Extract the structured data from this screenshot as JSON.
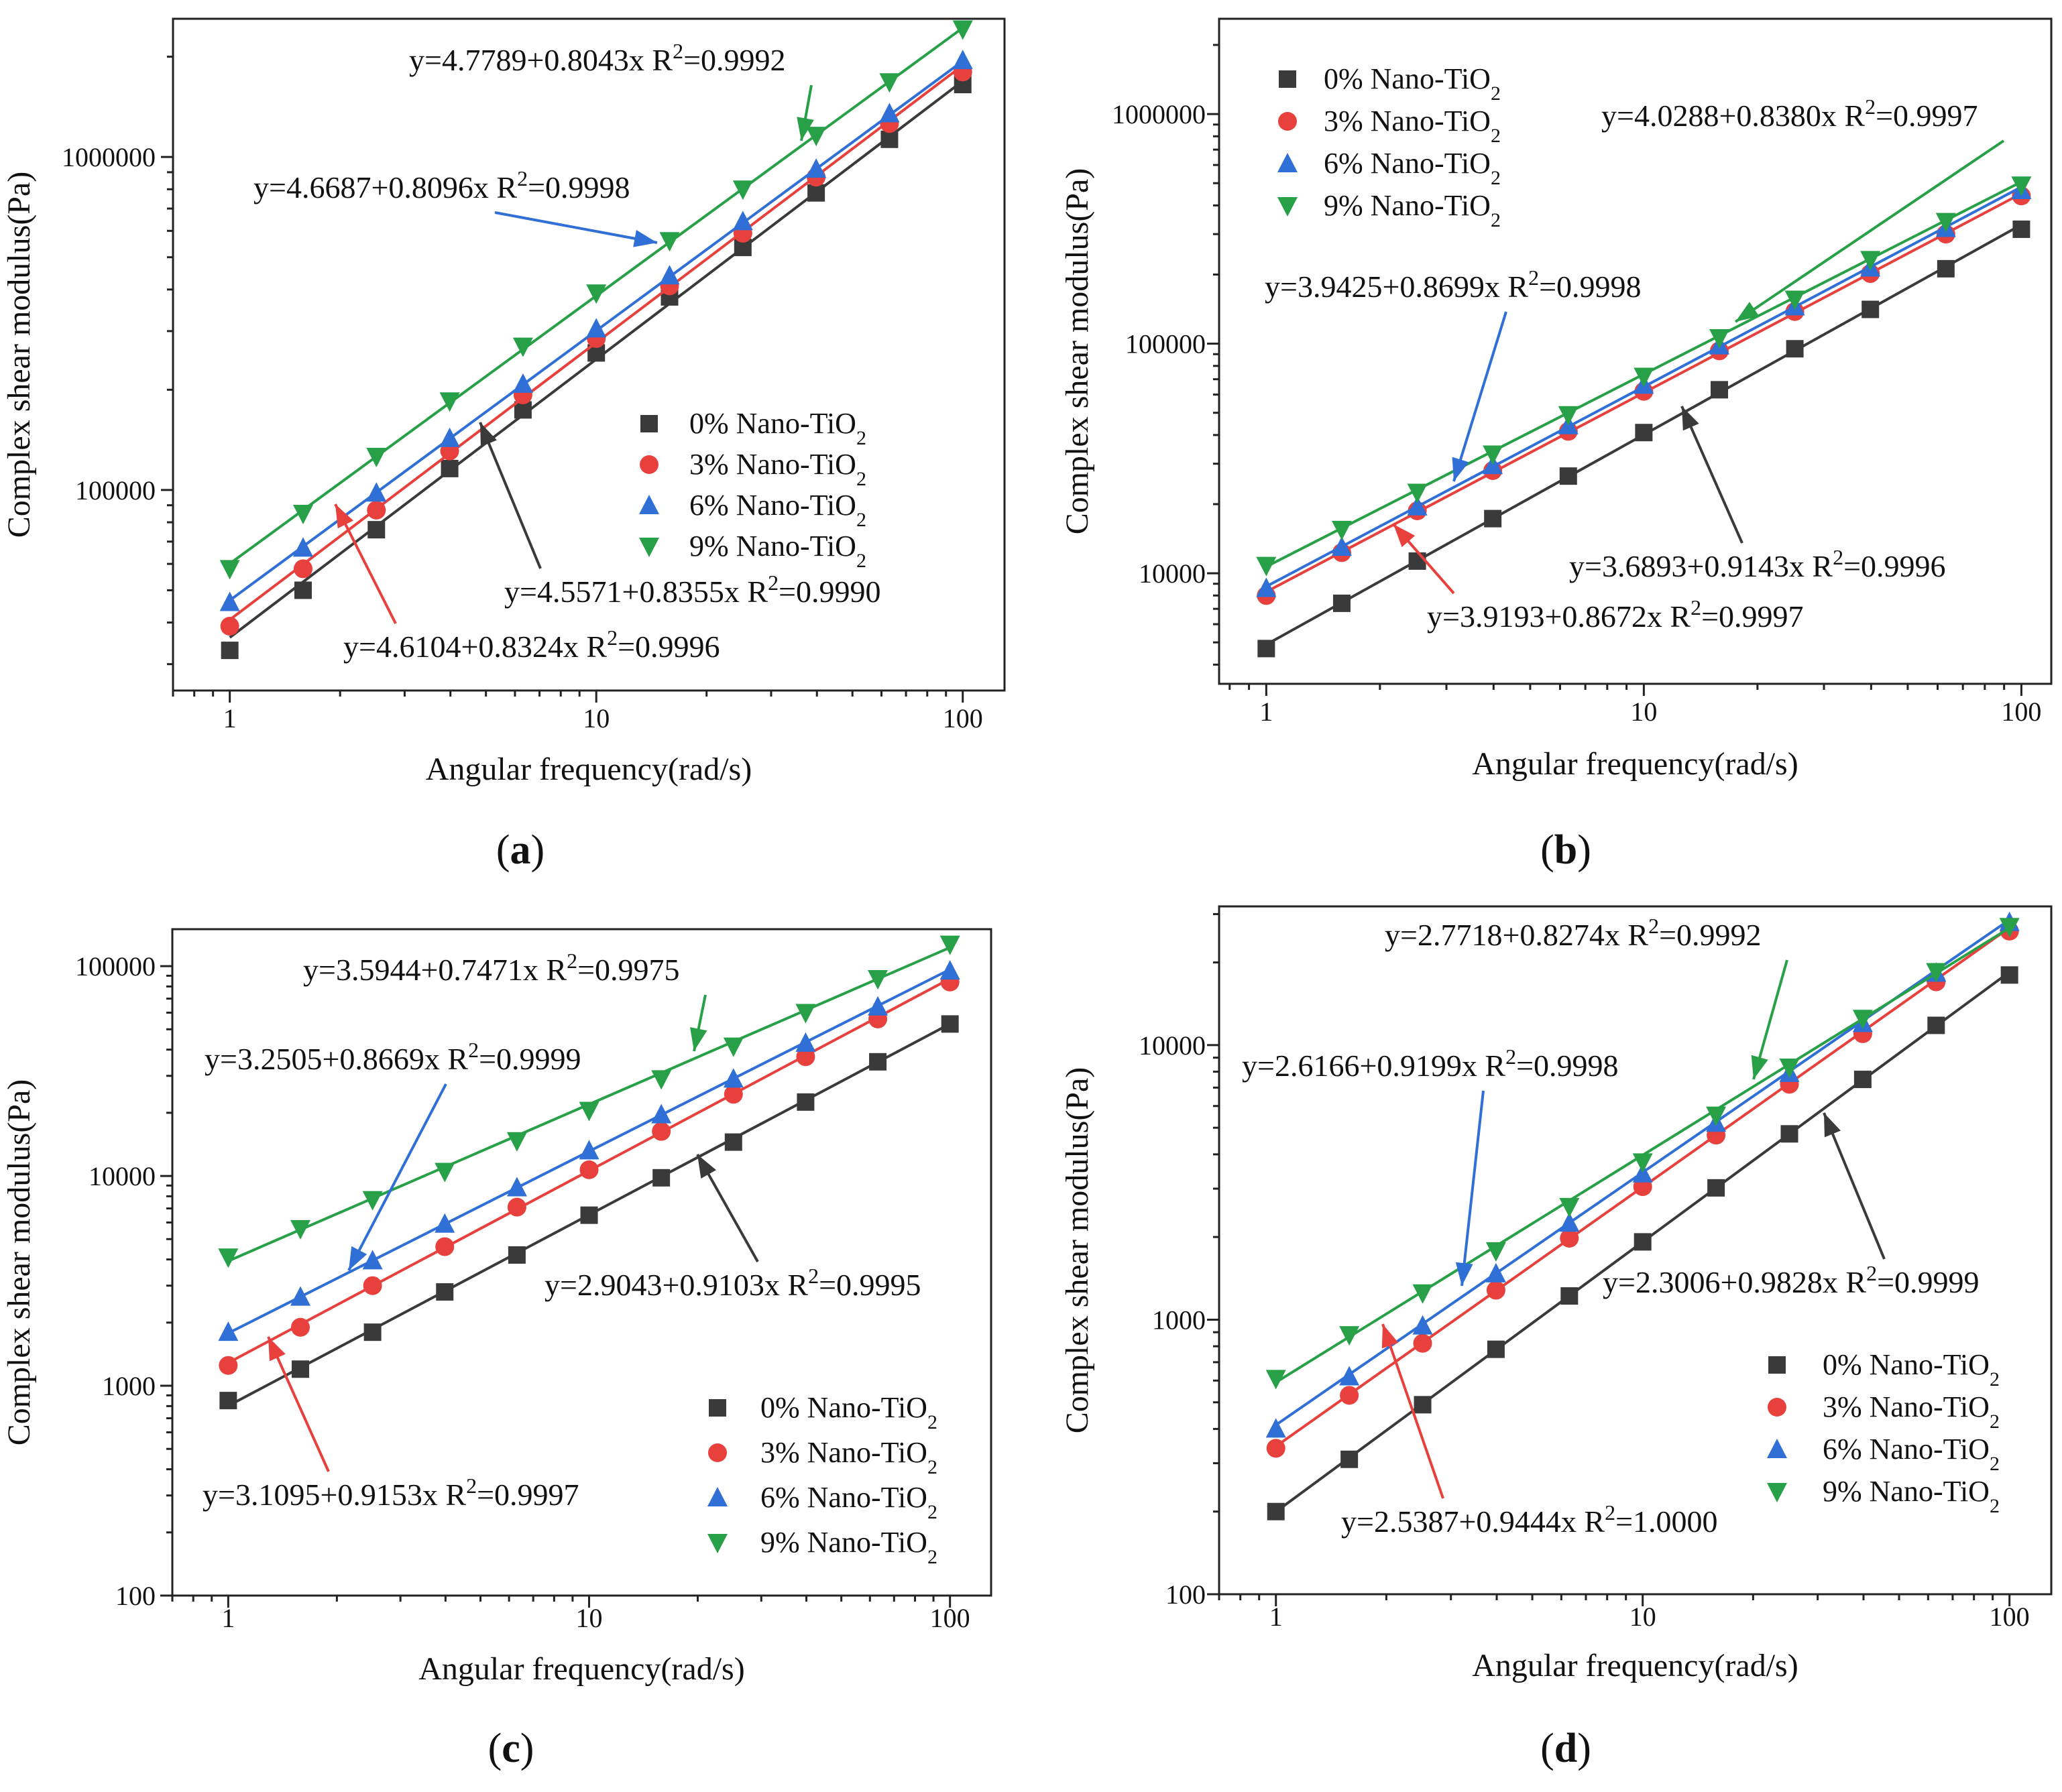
{
  "figure": {
    "common": {
      "xlabel": "Angular frequency(rad/s)",
      "ylabel": "Complex shear modulus(Pa)",
      "legend_prefix": [
        "0% Nano-TiO",
        "3% Nano-TiO",
        "6% Nano-TiO",
        "9% Nano-TiO"
      ],
      "legend_subscript": "2",
      "r2_label": "R",
      "r2_sup": "2",
      "caption_open": "(",
      "caption_close": ")"
    },
    "series_colors": [
      "#3a3a3a",
      "#e8403c",
      "#2f6fd6",
      "#27a048"
    ],
    "series_markers": [
      "square",
      "circle",
      "triangle-up",
      "triangle-down"
    ]
  },
  "chart_data": [
    {
      "type": "scatter",
      "panel": "a",
      "xlabel": "Angular frequency(rad/s)",
      "ylabel": "Complex shear modulus(Pa)",
      "xscale": "log",
      "yscale": "log",
      "xlim": [
        0.7,
        130
      ],
      "ylim": [
        25000,
        2600000
      ],
      "xticks": [
        {
          "v": 1,
          "label": "1"
        },
        {
          "v": 10,
          "label": "10"
        },
        {
          "v": 100,
          "label": "100"
        }
      ],
      "yticks": [
        {
          "v": 100000,
          "label": "100000"
        },
        {
          "v": 1000000,
          "label": "1000000"
        }
      ],
      "x": [
        1,
        1.585,
        2.512,
        3.981,
        6.31,
        10,
        15.85,
        25.12,
        39.81,
        63.1,
        100
      ],
      "legend_position": "center-right",
      "series": [
        {
          "name": "0% Nano-TiO2",
          "values": [
            33000,
            50000,
            76000,
            116000,
            174000,
            258000,
            380000,
            535000,
            780000,
            1130000,
            1650000
          ],
          "intercept": 4.5571,
          "slope": 0.8355,
          "r2": "0.9990",
          "equation": "y=4.5571+0.8355x"
        },
        {
          "name": "3% Nano-TiO2",
          "values": [
            39000,
            58000,
            87000,
            131000,
            193000,
            285000,
            410000,
            590000,
            870000,
            1260000,
            1800000
          ],
          "intercept": 4.6104,
          "slope": 0.8324,
          "r2": "0.9996",
          "equation": "y=4.6104+0.8324x"
        },
        {
          "name": "6% Nano-TiO2",
          "values": [
            46000,
            67000,
            98000,
            143000,
            208000,
            305000,
            440000,
            640000,
            920000,
            1350000,
            1950000
          ],
          "intercept": 4.6687,
          "slope": 0.8096,
          "r2": "0.9998",
          "equation": "y=4.6687+0.8096x"
        },
        {
          "name": "9% Nano-TiO2",
          "values": [
            58000,
            85000,
            126000,
            185000,
            270000,
            390000,
            560000,
            800000,
            1160000,
            1680000,
            2420000
          ],
          "intercept": 4.7789,
          "slope": 0.8043,
          "r2": "0.9992",
          "equation": "y=4.7789+0.8043x"
        }
      ]
    },
    {
      "type": "scatter",
      "panel": "b",
      "xlabel": "Angular frequency(rad/s)",
      "ylabel": "Complex shear modulus(Pa)",
      "xscale": "log",
      "yscale": "log",
      "xlim": [
        0.75,
        120
      ],
      "ylim": [
        3300,
        2600000
      ],
      "xticks": [
        {
          "v": 1,
          "label": "1"
        },
        {
          "v": 10,
          "label": "10"
        },
        {
          "v": 100,
          "label": "100"
        }
      ],
      "yticks": [
        {
          "v": 10000,
          "label": "10000"
        },
        {
          "v": 100000,
          "label": "100000"
        },
        {
          "v": 1000000,
          "label": "1000000"
        }
      ],
      "x": [
        1,
        1.585,
        2.512,
        3.981,
        6.31,
        10,
        15.85,
        25.12,
        39.81,
        63.1,
        100
      ],
      "legend_position": "top-left",
      "series": [
        {
          "name": "0% Nano-TiO2",
          "values": [
            4700,
            7400,
            11300,
            17300,
            26500,
            41000,
            63000,
            95000,
            141000,
            212000,
            315000
          ],
          "intercept": 3.6893,
          "slope": 0.9143,
          "r2": "0.9996",
          "equation": "y=3.6893+0.9143x"
        },
        {
          "name": "3% Nano-TiO2",
          "values": [
            8000,
            12300,
            18700,
            28000,
            41500,
            62000,
            93000,
            138000,
            202000,
            300000,
            440000
          ],
          "intercept": 3.9193,
          "slope": 0.8672,
          "r2": "0.9997",
          "equation": "y=3.9193+0.8672x"
        },
        {
          "name": "6% Nano-TiO2",
          "values": [
            8600,
            13000,
            19500,
            29500,
            44000,
            66000,
            98000,
            145000,
            214000,
            318000,
            465000
          ],
          "intercept": 3.9425,
          "slope": 0.8699,
          "r2": "0.9998",
          "equation": "y=3.9425+0.8699x"
        },
        {
          "name": "9% Nano-TiO2",
          "values": [
            10800,
            15500,
            22500,
            33000,
            49000,
            72000,
            106000,
            156000,
            232000,
            340000,
            490000
          ],
          "intercept": 4.0288,
          "slope": 0.838,
          "r2": "0.9997",
          "equation": "y=4.0288+0.8380x"
        }
      ]
    },
    {
      "type": "scatter",
      "panel": "c",
      "xlabel": "Angular frequency(rad/s)",
      "ylabel": "Complex shear modulus(Pa)",
      "xscale": "log",
      "yscale": "log",
      "xlim": [
        0.7,
        130
      ],
      "ylim": [
        100,
        150000
      ],
      "xticks": [
        {
          "v": 1,
          "label": "1"
        },
        {
          "v": 10,
          "label": "10"
        },
        {
          "v": 100,
          "label": "100"
        }
      ],
      "yticks": [
        {
          "v": 100,
          "label": "100"
        },
        {
          "v": 1000,
          "label": "1000"
        },
        {
          "v": 10000,
          "label": "10000"
        },
        {
          "v": 100000,
          "label": "100000"
        }
      ],
      "x": [
        1,
        1.585,
        2.512,
        3.981,
        6.31,
        10,
        15.85,
        25.12,
        39.81,
        63.1,
        100
      ],
      "legend_position": "bottom-right",
      "series": [
        {
          "name": "0% Nano-TiO2",
          "values": [
            850,
            1200,
            1800,
            2800,
            4200,
            6500,
            9800,
            14500,
            22500,
            35000,
            53000
          ],
          "intercept": 2.9043,
          "slope": 0.9103,
          "r2": "0.9995",
          "equation": "y=2.9043+0.9103x"
        },
        {
          "name": "3% Nano-TiO2",
          "values": [
            1250,
            1900,
            3000,
            4600,
            7100,
            10700,
            16300,
            24500,
            37000,
            56000,
            84000
          ],
          "intercept": 3.1095,
          "slope": 0.9153,
          "r2": "0.9997",
          "equation": "y=3.1095+0.9153x"
        },
        {
          "name": "6% Nano-TiO2",
          "values": [
            1800,
            2650,
            3950,
            5900,
            8800,
            13200,
            19600,
            29000,
            43000,
            64000,
            95000
          ],
          "intercept": 3.2505,
          "slope": 0.8669,
          "r2": "0.9999",
          "equation": "y=3.2505+0.8669x"
        },
        {
          "name": "9% Nano-TiO2",
          "values": [
            4100,
            5600,
            7700,
            10500,
            14700,
            20500,
            29000,
            41500,
            60000,
            87000,
            127000
          ],
          "intercept": 3.5944,
          "slope": 0.7471,
          "r2": "0.9975",
          "equation": "y=3.5944+0.7471x"
        }
      ]
    },
    {
      "type": "scatter",
      "panel": "d",
      "xlabel": "Angular frequency(rad/s)",
      "ylabel": "Complex shear modulus(Pa)",
      "xscale": "log",
      "yscale": "log",
      "xlim": [
        0.7,
        130
      ],
      "ylim": [
        100,
        32000
      ],
      "xticks": [
        {
          "v": 1,
          "label": "1"
        },
        {
          "v": 10,
          "label": "10"
        },
        {
          "v": 100,
          "label": "100"
        }
      ],
      "yticks": [
        {
          "v": 100,
          "label": "100"
        },
        {
          "v": 1000,
          "label": "1000"
        },
        {
          "v": 10000,
          "label": "10000"
        }
      ],
      "x": [
        1,
        1.585,
        2.512,
        3.981,
        6.31,
        10,
        15.85,
        25.12,
        39.81,
        63.1,
        100
      ],
      "legend_position": "bottom-right",
      "series": [
        {
          "name": "0% Nano-TiO2",
          "values": [
            200,
            310,
            490,
            780,
            1220,
            1920,
            3020,
            4750,
            7500,
            11800,
            18000
          ],
          "intercept": 2.3006,
          "slope": 0.9828,
          "r2": "0.9999",
          "equation": "y=2.3006+0.9828x"
        },
        {
          "name": "3% Nano-TiO2",
          "values": [
            340,
            530,
            820,
            1280,
            1980,
            3050,
            4700,
            7200,
            11000,
            17000,
            26000
          ],
          "intercept": 2.5387,
          "slope": 0.9444,
          "r2": "1.0000",
          "equation": "y=2.5387+0.9444x"
        },
        {
          "name": "6% Nano-TiO2",
          "values": [
            400,
            620,
            950,
            1470,
            2250,
            3400,
            5200,
            7900,
            12000,
            18300,
            28000
          ],
          "intercept": 2.6166,
          "slope": 0.9199,
          "r2": "0.9998",
          "equation": "y=2.6166+0.9199x"
        },
        {
          "name": "9% Nano-TiO2",
          "values": [
            610,
            880,
            1250,
            1780,
            2580,
            3750,
            5550,
            8300,
            12500,
            18500,
            27000
          ],
          "intercept": 2.7718,
          "slope": 0.8274,
          "r2": "0.9992",
          "equation": "y=2.7718+0.8274x"
        }
      ]
    }
  ]
}
